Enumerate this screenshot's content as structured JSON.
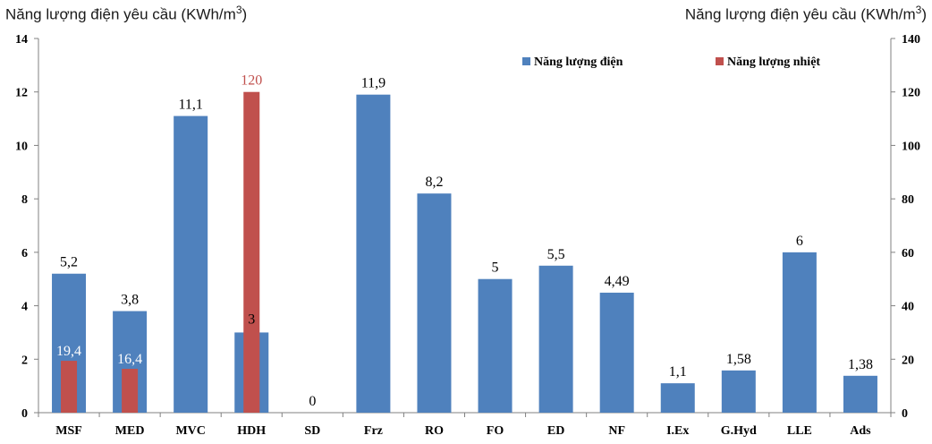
{
  "chart_data": {
    "type": "bar",
    "categories": [
      "MSF",
      "MED",
      "MVC",
      "HDH",
      "SD",
      "Frz",
      "RO",
      "FO",
      "ED",
      "NF",
      "I.Ex",
      "G.Hyd",
      "LLE",
      "Ads"
    ],
    "ylabel_left": "Năng lượng điện yêu cầu (KWh/m",
    "ylabel_right": "Năng lượng điện yêu cầu (KWh/m",
    "ylabel_unit_exp": "3",
    "ylabel_suffix": ")",
    "ylim_left": [
      0,
      14
    ],
    "yticks_left": [
      "0",
      "2",
      "4",
      "6",
      "8",
      "10",
      "12",
      "14"
    ],
    "ylim_right": [
      0,
      140
    ],
    "yticks_right": [
      "0",
      "20",
      "40",
      "60",
      "80",
      "100",
      "120",
      "140"
    ],
    "legend_position": "top-right",
    "grid": false,
    "series": [
      {
        "name": "Năng lượng điện",
        "axis": "left",
        "color": "#4f81bd",
        "values": [
          5.2,
          3.8,
          11.1,
          3,
          0,
          11.9,
          8.2,
          5,
          5.5,
          4.49,
          1.1,
          1.58,
          6,
          1.38
        ],
        "labels": [
          "5,2",
          "3,8",
          "11,1",
          "3",
          "0",
          "11,9",
          "8,2",
          "5",
          "5,5",
          "4,49",
          "1,1",
          "1,58",
          "6",
          "1,38"
        ]
      },
      {
        "name": "Năng lượng nhiệt",
        "axis": "right",
        "color": "#c0504d",
        "values": [
          19.4,
          16.4,
          null,
          120,
          null,
          null,
          null,
          null,
          null,
          null,
          null,
          null,
          null,
          null
        ],
        "labels": [
          "19,4",
          "16,4",
          "",
          "120",
          "",
          "",
          "",
          "",
          "",
          "",
          "",
          "",
          "",
          ""
        ]
      }
    ]
  }
}
